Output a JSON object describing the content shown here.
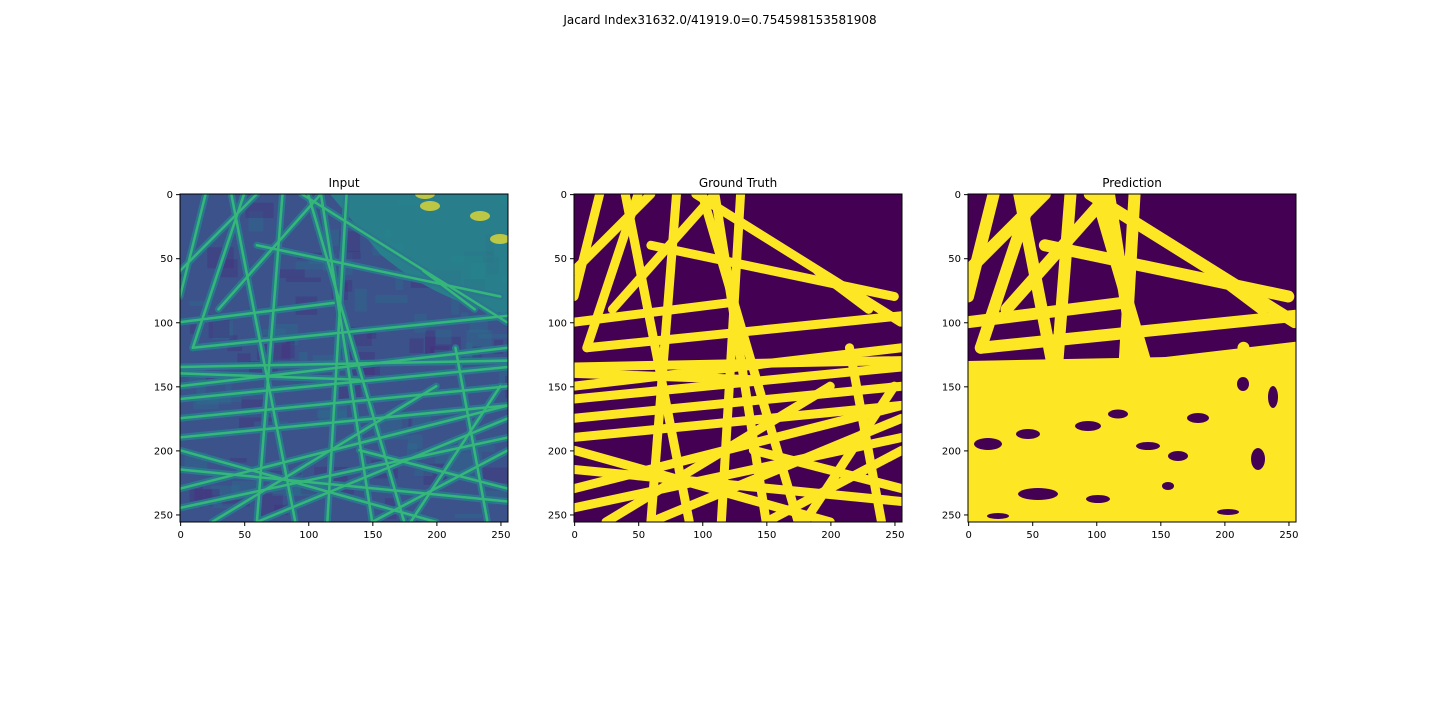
{
  "figure": {
    "suptitle": "Jacard Index31632.0/41919.0=0.754598153581908"
  },
  "colors": {
    "viridis_dark": "#440154",
    "viridis_yellow": "#fde725",
    "viridis_teal": "#21918c",
    "viridis_green": "#35b779",
    "viridis_blue": "#31688e",
    "axis": "#000000"
  },
  "chart_data": [
    {
      "type": "heatmap",
      "title": "Input",
      "colormap": "viridis",
      "content": "grayscale SEM image of fibers rendered with viridis colormap",
      "xlim": [
        0,
        255
      ],
      "ylim": [
        255,
        0
      ],
      "xticks": [
        0,
        50,
        100,
        150,
        200,
        250
      ],
      "yticks": [
        0,
        50,
        100,
        150,
        200,
        250
      ],
      "xlabel": "",
      "ylabel": ""
    },
    {
      "type": "heatmap",
      "title": "Ground Truth",
      "colormap": "viridis",
      "content": "binary fiber mask (yellow = fiber, purple = background)",
      "xlim": [
        0,
        255
      ],
      "ylim": [
        255,
        0
      ],
      "xticks": [
        0,
        50,
        100,
        150,
        200,
        250
      ],
      "yticks": [
        0,
        50,
        100,
        150,
        200,
        250
      ],
      "xlabel": "",
      "ylabel": ""
    },
    {
      "type": "heatmap",
      "title": "Prediction",
      "colormap": "viridis",
      "content": "binary predicted fiber mask (yellow = fiber, purple = background)",
      "xlim": [
        0,
        255
      ],
      "ylim": [
        255,
        0
      ],
      "xticks": [
        0,
        50,
        100,
        150,
        200,
        250
      ],
      "yticks": [
        0,
        50,
        100,
        150,
        200,
        250
      ],
      "xlabel": "",
      "ylabel": ""
    }
  ],
  "jaccard": {
    "intersection": 31632.0,
    "union": 41919.0,
    "value": 0.754598153581908
  }
}
